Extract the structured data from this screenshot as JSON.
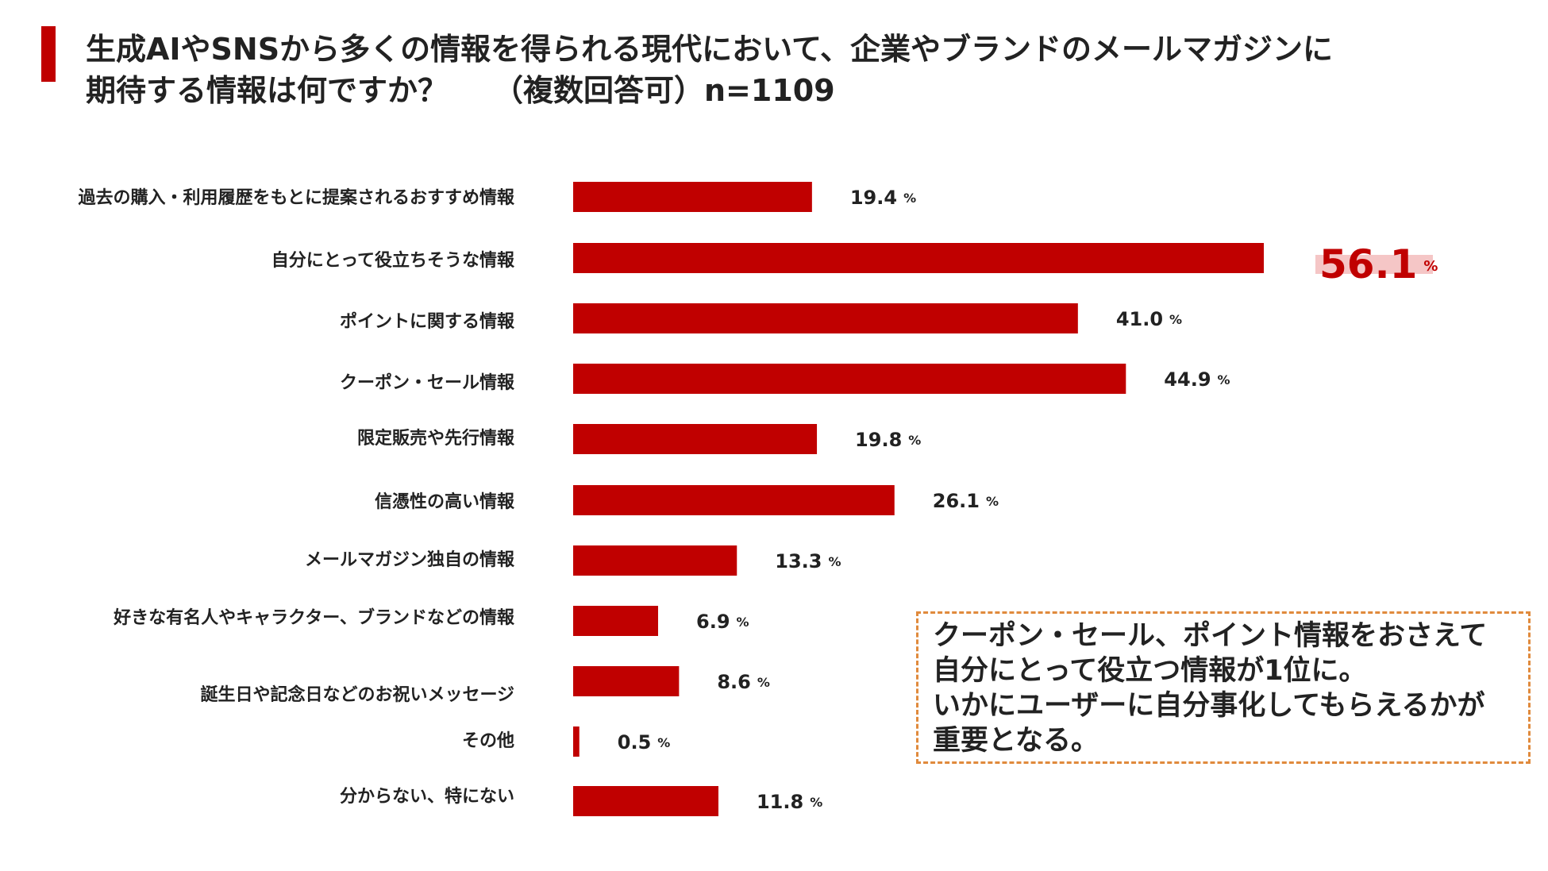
{
  "title": {
    "line1": "生成AIやSNSから多くの情報を得られる現代において、企業やブランドのメールマガジンに",
    "line2": "期待する情報は何ですか？　　（複数回答可）n=1109"
  },
  "chart_data": {
    "type": "bar",
    "orientation": "horizontal",
    "unit": "%",
    "categories": [
      "過去の購入・利用履歴をもとに提案されるおすすめ情報",
      "自分にとって役立ちそうな情報",
      "ポイントに関する情報",
      "クーポン・セール情報",
      "限定販売や先行情報",
      "信憑性の高い情報",
      "メールマガジン独自の情報",
      "好きな有名人やキャラクター、ブランドなどの情報",
      "誕生日や記念日などのお祝いメッセージ",
      "その他",
      "分からない、特にない"
    ],
    "values": [
      19.4,
      56.1,
      41.0,
      44.9,
      19.8,
      26.1,
      13.3,
      6.9,
      8.6,
      0.5,
      11.8
    ],
    "value_labels": [
      "19.4",
      "56.1",
      "41.0",
      "44.9",
      "19.8",
      "26.1",
      "13.3",
      "6.9",
      "8.6",
      "0.5",
      "11.8"
    ],
    "highlight_index": 1,
    "bar_color": "#c00000",
    "highlight_text_color": "#c00000",
    "highlight_band_color": "#f5c6c6",
    "xlim": [
      0,
      56.1
    ]
  },
  "callout": {
    "line1": "クーポン・セール、ポイント情報をおさえて",
    "line2": "自分にとって役立つ情報が1位に。",
    "line3": "いかにユーザーに自分事化してもらえるかが",
    "line4": "重要となる。"
  },
  "colors": {
    "accent": "#c00000",
    "callout_border": "#e08a3c"
  }
}
